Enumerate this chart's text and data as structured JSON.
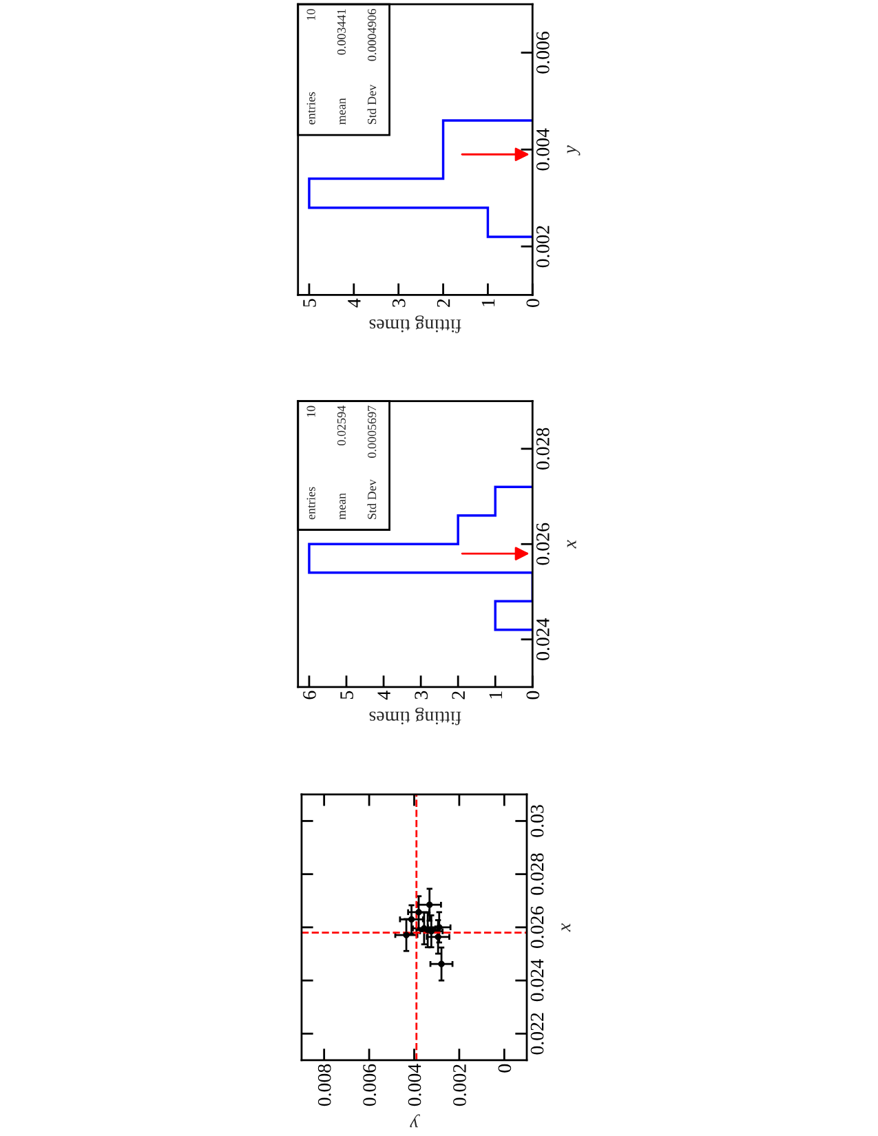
{
  "chart_data": [
    {
      "type": "scatter",
      "xlabel": "y",
      "ylabel": "x",
      "x": [
        0.00435,
        0.00412,
        0.0038,
        0.00332,
        0.00356,
        0.0034,
        0.00289,
        0.00294,
        0.00279,
        0.00324
      ],
      "series": [
        {
          "color": "#000000",
          "values": [
            0.02571,
            0.0263,
            0.02657,
            0.02685,
            0.02596,
            0.0259,
            0.026,
            0.02564,
            0.02462,
            0.02585
          ],
          "errors": [
            0.0006,
            0.00053,
            0.0006,
            0.0006,
            0.0006,
            0.00065,
            0.00057,
            0.00063,
            0.00062,
            0.0006
          ],
          "xerrors": [
            0.00049,
            0.00051,
            0.00047,
            0.00051,
            0.0005,
            0.0005,
            0.0005,
            0.0005,
            0.00049,
            0.0005
          ]
        }
      ],
      "xlim": [
        0.009,
        -0.001
      ],
      "ylim": [
        0.021,
        0.031
      ],
      "xticks": [
        0,
        0.002,
        0.004,
        0.006,
        0.008
      ],
      "yticks": [
        0.022,
        0.024,
        0.026,
        0.028,
        0.03
      ],
      "ref_lines": [
        {
          "axis": "y",
          "value": 0.0258,
          "color": "#ff0000",
          "line_style": "dashed"
        },
        {
          "axis": "x",
          "value": 0.0039,
          "color": "#ff0000",
          "line_style": "dashed"
        }
      ],
      "marker": "circle",
      "grid": false
    },
    {
      "type": "histogram",
      "orientation": "horizontal",
      "xlabel": "fitting times",
      "ylabel": "x",
      "bins": [
        0.0242,
        0.0248,
        0.0254,
        0.026,
        0.0266,
        0.0272
      ],
      "values": [
        1,
        0,
        6,
        2,
        1
      ],
      "color": "#0000ff",
      "xlim": [
        6.3,
        0
      ],
      "ylim": [
        0.023,
        0.029
      ],
      "xticks": [
        0,
        1,
        2,
        3,
        4,
        5,
        6
      ],
      "yticks": [
        0.024,
        0.026,
        0.028
      ],
      "ref_lines": [
        {
          "axis": "y",
          "value": 0.0258,
          "color": "#ff0000"
        }
      ],
      "annotations": [
        "entries",
        "10",
        "mean",
        "0.02594",
        "Std Dev",
        "0.0005697"
      ],
      "grid": false
    },
    {
      "type": "histogram",
      "orientation": "horizontal",
      "xlabel": "fitting times",
      "ylabel": "y",
      "bins": [
        0.0022,
        0.0028,
        0.0034,
        0.004,
        0.0046
      ],
      "values": [
        1,
        5,
        2,
        2
      ],
      "color": "#0000ff",
      "xlim": [
        5.25,
        0
      ],
      "ylim": [
        0.001,
        0.007
      ],
      "xticks": [
        0,
        1,
        2,
        3,
        4,
        5
      ],
      "yticks": [
        0.002,
        0.004,
        0.006
      ],
      "ref_lines": [
        {
          "axis": "y",
          "value": 0.0039,
          "color": "#ff0000"
        }
      ],
      "annotations": [
        "entries",
        "10",
        "mean",
        "0.003441",
        "Std Dev",
        "0.0004906"
      ],
      "grid": false
    }
  ]
}
